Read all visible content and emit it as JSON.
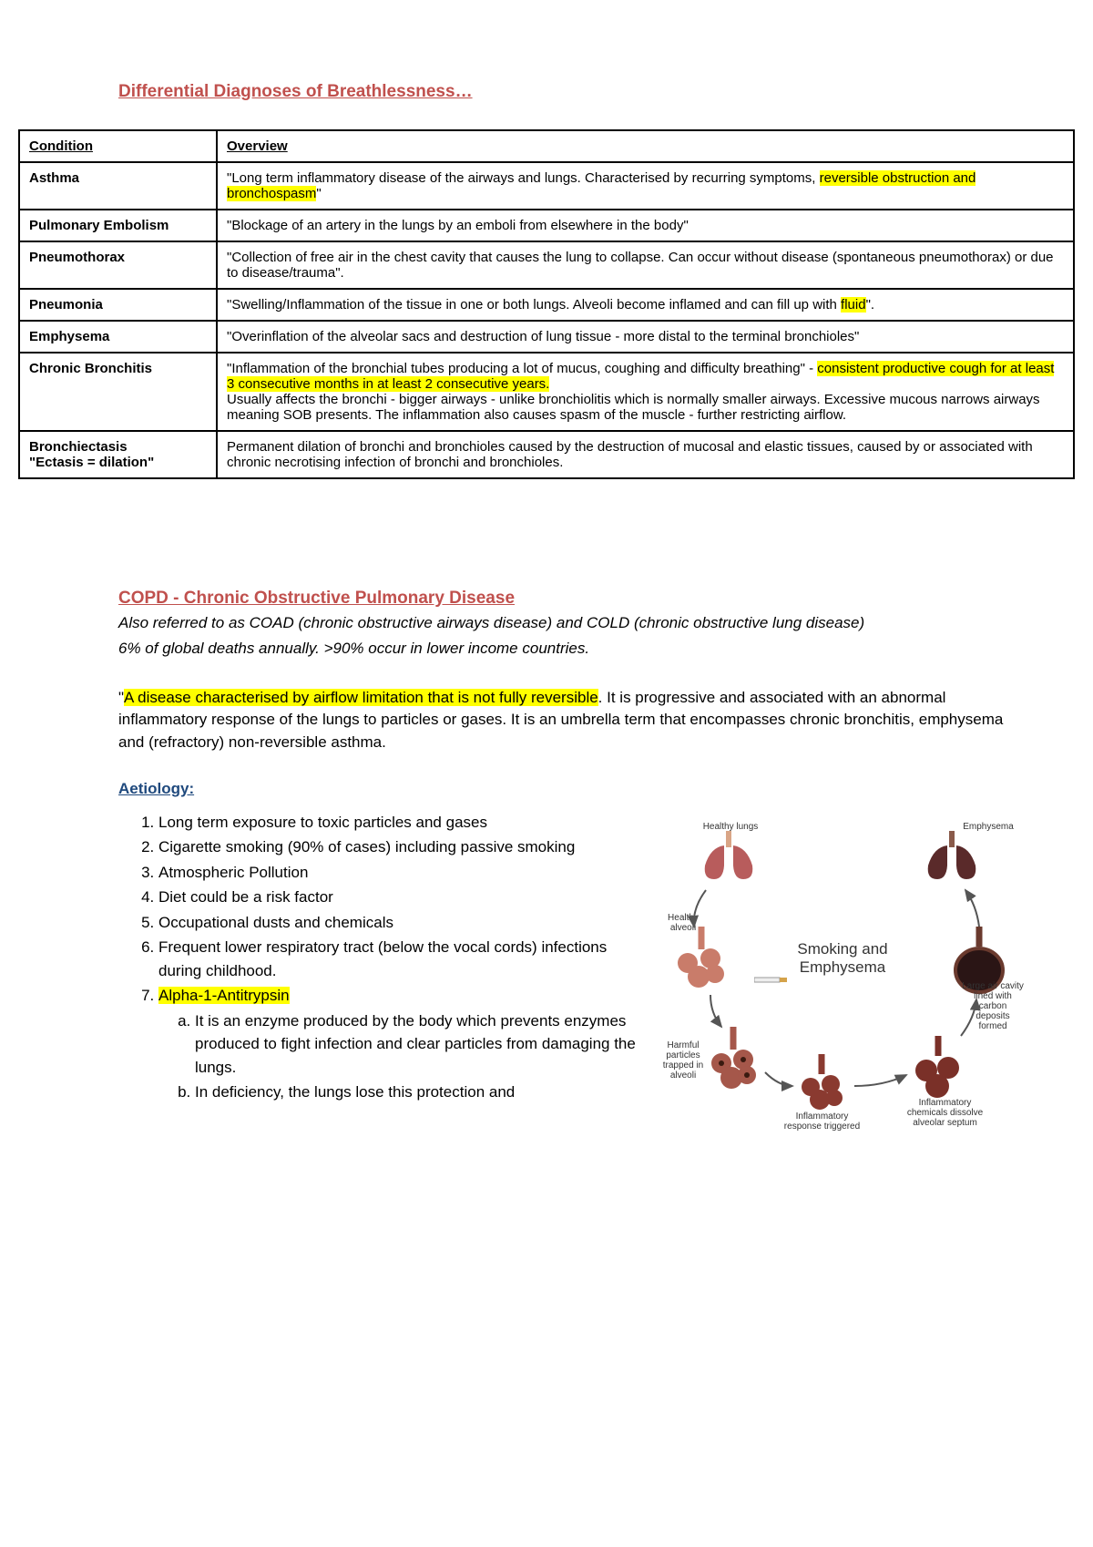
{
  "title": "Differential Diagnoses of Breathlessness…",
  "table": {
    "headers": [
      "Condition",
      "Overview"
    ],
    "rows": [
      {
        "condition": "Asthma",
        "overview_pre": "\"Long term inflammatory disease of the airways and lungs. Characterised by recurring symptoms, ",
        "overview_hl": "reversible obstruction and bronchospasm",
        "overview_post": "\""
      },
      {
        "condition": "Pulmonary Embolism",
        "overview_pre": "\"Blockage of an artery in the lungs by an emboli from elsewhere in the body\"",
        "overview_hl": "",
        "overview_post": ""
      },
      {
        "condition": "Pneumothorax",
        "overview_pre": "\"Collection of free air in the chest cavity that causes the lung to collapse. Can occur without disease (spontaneous pneumothorax) or due to disease/trauma\".",
        "overview_hl": "",
        "overview_post": ""
      },
      {
        "condition": "Pneumonia",
        "overview_pre": "\"Swelling/Inflammation of the tissue in one or both lungs. Alveoli become inflamed and can fill up with ",
        "overview_hl": "fluid",
        "overview_post": "\"."
      },
      {
        "condition": "Emphysema",
        "overview_pre": "\"Overinflation of the alveolar sacs and destruction of lung tissue - more distal to the terminal bronchioles\"",
        "overview_hl": "",
        "overview_post": ""
      },
      {
        "condition": "Chronic Bronchitis",
        "overview_pre": "\"Inflammation of the bronchial tubes producing a lot of mucus, coughing and difficulty breathing\" - ",
        "overview_hl": "consistent productive cough for at least 3 consecutive months in at least 2 consecutive years.",
        "overview_post": " \nUsually affects the bronchi - bigger airways - unlike bronchiolitis which is normally smaller airways. Excessive mucous narrows airways meaning SOB presents. The inflammation also causes spasm of the muscle - further restricting airflow."
      },
      {
        "condition": "Bronchiectasis\n\"Ectasis = dilation\"",
        "overview_pre": "Permanent dilation of bronchi and bronchioles caused by the destruction of mucosal and elastic tissues, caused by or associated with chronic necrotising infection of bronchi and bronchioles.",
        "overview_hl": "",
        "overview_post": ""
      }
    ]
  },
  "copd": {
    "title": "COPD - Chronic Obstructive Pulmonary Disease",
    "italic1": "Also referred to as COAD (chronic obstructive airways disease) and COLD (chronic obstructive lung disease)",
    "italic2": "6% of global deaths annually. >90% occur in lower income countries.",
    "body_pre": "\"",
    "body_hl": "A disease characterised by airflow limitation that is not fully reversible",
    "body_post": ". It is progressive and associated with an abnormal inflammatory response of the lungs to particles or gases. It is an umbrella term that encompasses chronic bronchitis, emphysema and (refractory) non-reversible asthma."
  },
  "aetiology": {
    "title": "Aetiology:",
    "items": [
      "Long term exposure to toxic particles and gases",
      "Cigarette smoking (90% of cases) including passive smoking",
      "Atmospheric Pollution",
      "Diet could be a risk factor",
      "Occupational dusts and chemicals",
      "Frequent lower respiratory tract (below the vocal cords) infections during childhood."
    ],
    "item7_hl": "Alpha-1-Antitrypsin",
    "sub_a": "It is an enzyme produced by the body which prevents enzymes produced to fight infection and clear particles from damaging the lungs.",
    "sub_b": "In deficiency, the lungs lose this protection and"
  },
  "diagram": {
    "center": "Smoking and Emphysema",
    "healthy_lungs": "Healthy lungs",
    "emphysema": "Emphysema",
    "healthy_alveoli": "Healthy alveoli",
    "large_cavity": "Large air cavity lined with carbon deposits formed",
    "harmful": "Harmful particles trapped in alveoli",
    "inflam_resp": "Inflammatory response triggered",
    "inflam_chem": "Inflammatory chemicals dissolve alveolar septum"
  }
}
